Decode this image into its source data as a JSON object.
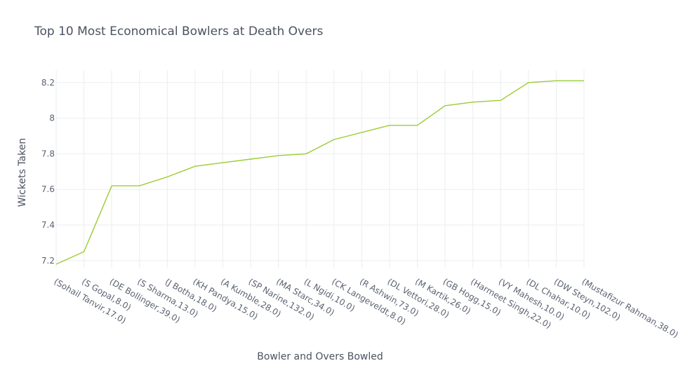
{
  "chart_data": {
    "type": "line",
    "title": "Top 10 Most Economical Bowlers at Death Overs",
    "xlabel": "Bowler and Overs Bowled",
    "ylabel": "Wickets Taken",
    "ylim": [
      7.16,
      8.27
    ],
    "yticks": [
      "7.2",
      "7.4",
      "7.6",
      "7.8",
      "8",
      "8.2"
    ],
    "ytick_values": [
      7.2,
      7.4,
      7.6,
      7.8,
      8.0,
      8.2
    ],
    "grid": true,
    "color": "#9acd32",
    "categories": [
      "(Sohail Tanvir,17.0)",
      "(S Gopal,8.0)",
      "(DE Bollinger,39.0)",
      "(S Sharma,13.0)",
      "(J Botha,18.0)",
      "(KH Pandya,15.0)",
      "(A Kumble,28.0)",
      "(SP Narine,132.0)",
      "(MA Starc,34.0)",
      "(L Ngidi,10.0)",
      "(CK Langeveldt,8.0)",
      "(R Ashwin,73.0)",
      "(DL Vettori,28.0)",
      "(M Kartik,26.0)",
      "(GB Hogg,15.0)",
      "(Harmeet Singh,22.0)",
      "(VY Mahesh,10.0)",
      "(DL Chahar,10.0)",
      "(DW Steyn,102.0)",
      "(Mustafizur Rahman,38.0)"
    ],
    "series": [
      {
        "values": [
          7.18,
          7.25,
          7.62,
          7.62,
          7.67,
          7.73,
          7.75,
          7.77,
          7.79,
          7.8,
          7.88,
          7.92,
          7.96,
          7.96,
          8.07,
          8.09,
          8.1,
          8.2,
          8.21,
          8.21
        ]
      }
    ]
  }
}
